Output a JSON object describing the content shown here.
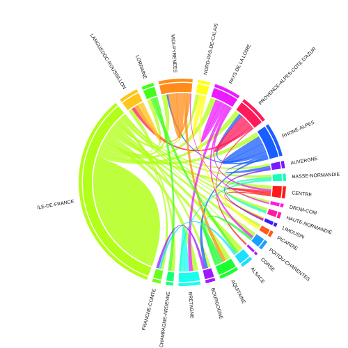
{
  "chart_data": {
    "type": "chord",
    "title": "",
    "start_angle_deg": 110,
    "segments": [
      {
        "name": "ILE-DE-FRANCE",
        "color": "#b2ff1a",
        "sweep_deg": 88
      },
      {
        "name": "LANGUEDOC-ROUSSILLON",
        "color": "#ffc51a",
        "sweep_deg": 8
      },
      {
        "name": "LORRAINE",
        "color": "#43ff1a",
        "sweep_deg": 5
      },
      {
        "name": "MIDI-PYRENEES",
        "color": "#ff8c1a",
        "sweep_deg": 14
      },
      {
        "name": "NORD-PAS-DE-CALAIS",
        "color": "#ffff1a",
        "sweep_deg": 5
      },
      {
        "name": "PAYS DE LA LOIRE",
        "color": "#ec1aff",
        "sweep_deg": 11
      },
      {
        "name": "PROVENCE-ALPES-COTE D'AZUR",
        "color": "#ff1a5a",
        "sweep_deg": 12
      },
      {
        "name": "RHONE-ALPES",
        "color": "#1a5eff",
        "sweep_deg": 14
      },
      {
        "name": "AUVERGNE",
        "color": "#7a1aff",
        "sweep_deg": 3
      },
      {
        "name": "BASSE-NORMANDIE",
        "color": "#1affb8",
        "sweep_deg": 3
      },
      {
        "name": "CENTRE",
        "color": "#ff1a1a",
        "sweep_deg": 5
      },
      {
        "name": "DROM-COM",
        "color": "#ff1ae0",
        "sweep_deg": 1.5
      },
      {
        "name": "HAUTE-NORMANDIE",
        "color": "#ff1aa0",
        "sweep_deg": 2.5
      },
      {
        "name": "LIMOUSIN",
        "color": "#3a1aff",
        "sweep_deg": 1.5
      },
      {
        "name": "PICARDIE",
        "color": "#ff5a1a",
        "sweep_deg": 2.5
      },
      {
        "name": "POITOU-CHARENTES",
        "color": "#1aa0ff",
        "sweep_deg": 4
      },
      {
        "name": "CORSE",
        "color": "#b21aff",
        "sweep_deg": 1
      },
      {
        "name": "ALSACE",
        "color": "#1ae0ff",
        "sweep_deg": 5
      },
      {
        "name": "AQUITAINE",
        "color": "#1aff2e",
        "sweep_deg": 8
      },
      {
        "name": "BOURGOGNE",
        "color": "#a01aff",
        "sweep_deg": 4
      },
      {
        "name": "BRETAGNE",
        "color": "#1affee",
        "sweep_deg": 9
      },
      {
        "name": "CHAMPAGNE-ARDENNE",
        "color": "#1aff7a",
        "sweep_deg": 3
      },
      {
        "name": "FRANCHE-COMTE",
        "color": "#6aff1a",
        "sweep_deg": 3.5
      }
    ],
    "links": [
      {
        "from": "ILE-DE-FRANCE",
        "to": "ILE-DE-FRANCE",
        "weight": 46
      },
      {
        "from": "ILE-DE-FRANCE",
        "to": "PROVENCE-ALPES-COTE D'AZUR",
        "weight": 3
      },
      {
        "from": "ILE-DE-FRANCE",
        "to": "RHONE-ALPES",
        "weight": 3
      },
      {
        "from": "ILE-DE-FRANCE",
        "to": "PAYS DE LA LOIRE",
        "weight": 3
      },
      {
        "from": "ILE-DE-FRANCE",
        "to": "MIDI-PYRENEES",
        "weight": 3
      },
      {
        "from": "ILE-DE-FRANCE",
        "to": "BRETAGNE",
        "weight": 3
      },
      {
        "from": "ILE-DE-FRANCE",
        "to": "AQUITAINE",
        "weight": 3
      },
      {
        "from": "ILE-DE-FRANCE",
        "to": "CENTRE",
        "weight": 2
      },
      {
        "from": "ILE-DE-FRANCE",
        "to": "LANGUEDOC-ROUSSILLON",
        "weight": 2
      },
      {
        "from": "ILE-DE-FRANCE",
        "to": "ALSACE",
        "weight": 2
      },
      {
        "from": "ILE-DE-FRANCE",
        "to": "POITOU-CHARENTES",
        "weight": 1.5
      },
      {
        "from": "ILE-DE-FRANCE",
        "to": "NORD-PAS-DE-CALAIS",
        "weight": 1.5
      },
      {
        "from": "ILE-DE-FRANCE",
        "to": "LORRAINE",
        "weight": 1
      },
      {
        "from": "ILE-DE-FRANCE",
        "to": "BOURGOGNE",
        "weight": 1
      },
      {
        "from": "ILE-DE-FRANCE",
        "to": "FRANCHE-COMTE",
        "weight": 1
      },
      {
        "from": "ILE-DE-FRANCE",
        "to": "CHAMPAGNE-ARDENNE",
        "weight": 1
      },
      {
        "from": "ILE-DE-FRANCE",
        "to": "BASSE-NORMANDIE",
        "weight": 1
      },
      {
        "from": "ILE-DE-FRANCE",
        "to": "PICARDIE",
        "weight": 0.8
      },
      {
        "from": "ILE-DE-FRANCE",
        "to": "HAUTE-NORMANDIE",
        "weight": 0.8
      },
      {
        "from": "ILE-DE-FRANCE",
        "to": "AUVERGNE",
        "weight": 0.8
      },
      {
        "from": "ILE-DE-FRANCE",
        "to": "LIMOUSIN",
        "weight": 0.5
      },
      {
        "from": "ILE-DE-FRANCE",
        "to": "DROM-COM",
        "weight": 0.5
      },
      {
        "from": "ILE-DE-FRANCE",
        "to": "CORSE",
        "weight": 0.3
      },
      {
        "from": "RHONE-ALPES",
        "to": "RHONE-ALPES",
        "weight": 5
      },
      {
        "from": "RHONE-ALPES",
        "to": "PROVENCE-ALPES-COTE D'AZUR",
        "weight": 2
      },
      {
        "from": "RHONE-ALPES",
        "to": "AUVERGNE",
        "weight": 1
      },
      {
        "from": "RHONE-ALPES",
        "to": "BOURGOGNE",
        "weight": 1
      },
      {
        "from": "RHONE-ALPES",
        "to": "MIDI-PYRENEES",
        "weight": 1
      },
      {
        "from": "PROVENCE-ALPES-COTE D'AZUR",
        "to": "PROVENCE-ALPES-COTE D'AZUR",
        "weight": 4
      },
      {
        "from": "PROVENCE-ALPES-COTE D'AZUR",
        "to": "LANGUEDOC-ROUSSILLON",
        "weight": 1.5
      },
      {
        "from": "PROVENCE-ALPES-COTE D'AZUR",
        "to": "CORSE",
        "weight": 0.5
      },
      {
        "from": "MIDI-PYRENEES",
        "to": "MIDI-PYRENEES",
        "weight": 5
      },
      {
        "from": "MIDI-PYRENEES",
        "to": "AQUITAINE",
        "weight": 2
      },
      {
        "from": "MIDI-PYRENEES",
        "to": "LANGUEDOC-ROUSSILLON",
        "weight": 2
      },
      {
        "from": "PAYS DE LA LOIRE",
        "to": "PAYS DE LA LOIRE",
        "weight": 3
      },
      {
        "from": "PAYS DE LA LOIRE",
        "to": "BRETAGNE",
        "weight": 2
      },
      {
        "from": "PAYS DE LA LOIRE",
        "to": "POITOU-CHARENTES",
        "weight": 1
      },
      {
        "from": "PAYS DE LA LOIRE",
        "to": "CENTRE",
        "weight": 1
      },
      {
        "from": "NORD-PAS-DE-CALAIS",
        "to": "NORD-PAS-DE-CALAIS",
        "weight": 1.5
      },
      {
        "from": "NORD-PAS-DE-CALAIS",
        "to": "PICARDIE",
        "weight": 1
      },
      {
        "from": "LORRAINE",
        "to": "ALSACE",
        "weight": 1
      },
      {
        "from": "LORRAINE",
        "to": "CHAMPAGNE-ARDENNE",
        "weight": 0.8
      },
      {
        "from": "LANGUEDOC-ROUSSILLON",
        "to": "LANGUEDOC-ROUSSILLON",
        "weight": 1.5
      },
      {
        "from": "AQUITAINE",
        "to": "AQUITAINE",
        "weight": 2
      },
      {
        "from": "AQUITAINE",
        "to": "POITOU-CHARENTES",
        "weight": 1
      },
      {
        "from": "BRETAGNE",
        "to": "BRETAGNE",
        "weight": 2.5
      },
      {
        "from": "BASSE-NORMANDIE",
        "to": "HAUTE-NORMANDIE",
        "weight": 0.8
      },
      {
        "from": "BASSE-NORMANDIE",
        "to": "BRETAGNE",
        "weight": 0.8
      },
      {
        "from": "CENTRE",
        "to": "CENTRE",
        "weight": 1
      },
      {
        "from": "CENTRE",
        "to": "LIMOUSIN",
        "weight": 0.5
      },
      {
        "from": "AUVERGNE",
        "to": "LIMOUSIN",
        "weight": 0.5
      },
      {
        "from": "ALSACE",
        "to": "FRANCHE-COMTE",
        "weight": 0.8
      },
      {
        "from": "BOURGOGNE",
        "to": "FRANCHE-COMTE",
        "weight": 0.8
      },
      {
        "from": "DROM-COM",
        "to": "MIDI-PYRENEES",
        "weight": 0.3
      }
    ]
  }
}
